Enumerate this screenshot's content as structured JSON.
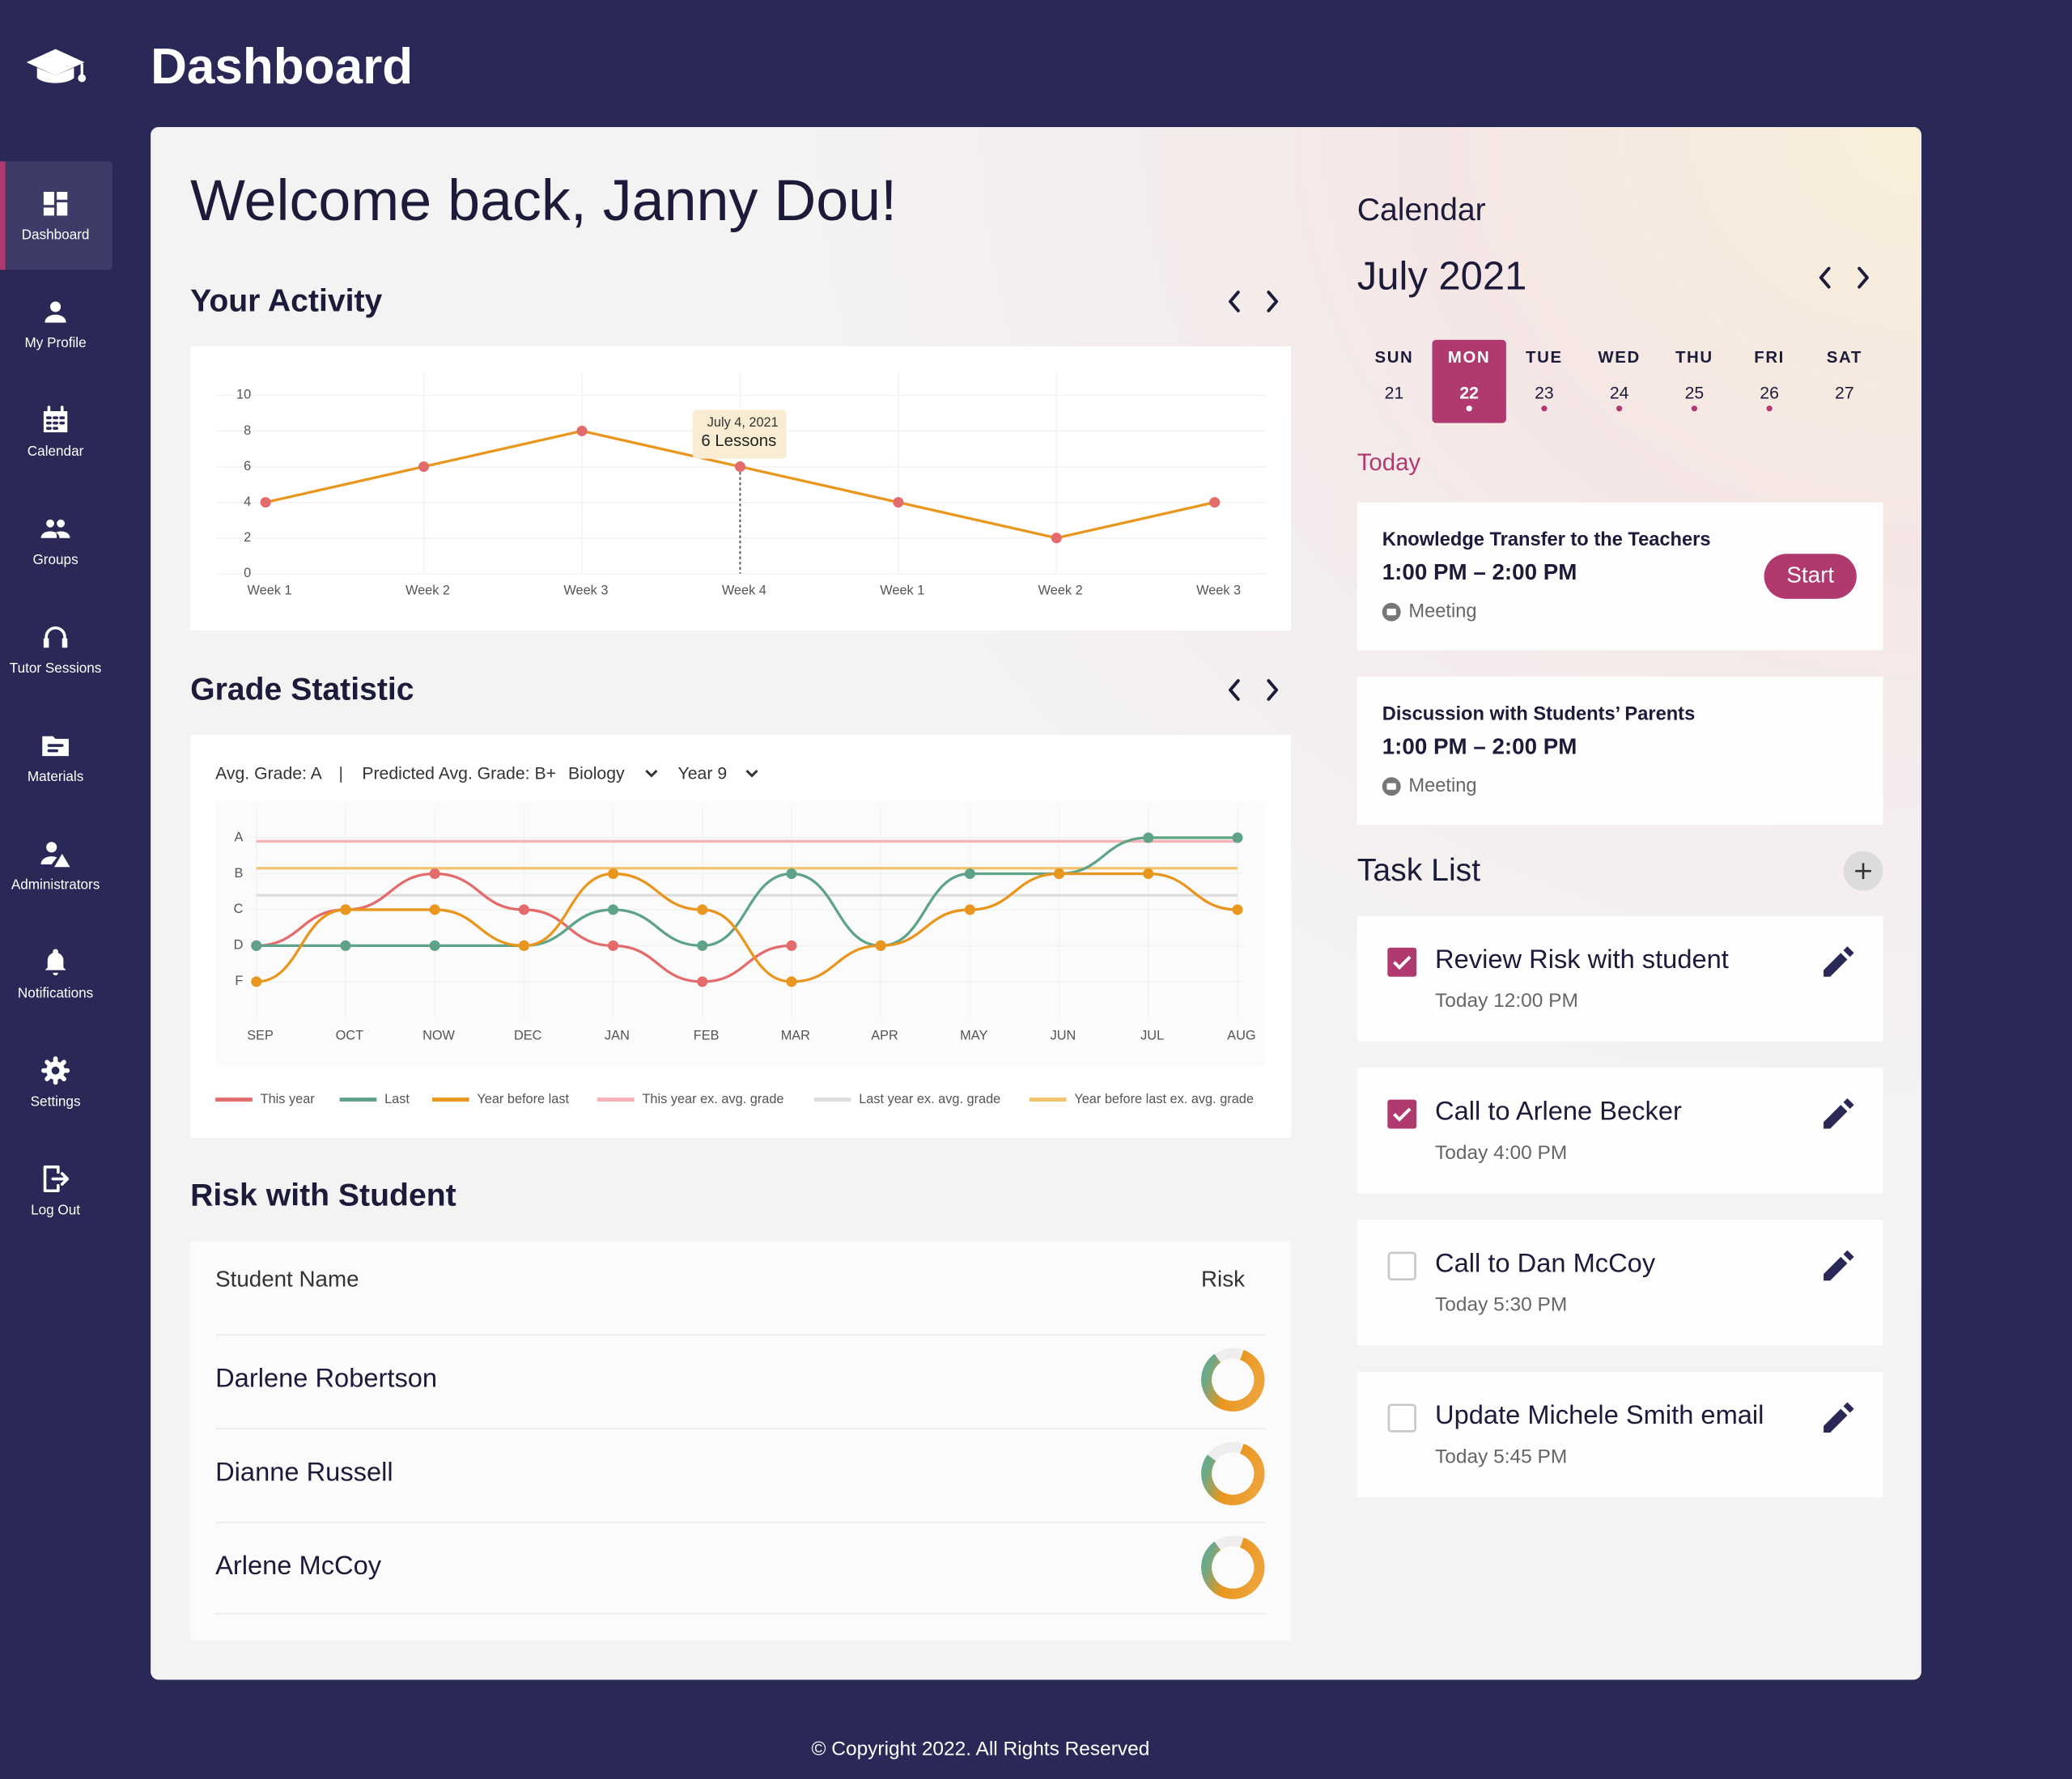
{
  "header": {
    "title": "Dashboard"
  },
  "sidebar": [
    {
      "label": "Dashboard",
      "active": true
    },
    {
      "label": "My Profile",
      "active": false
    },
    {
      "label": "Calendar",
      "active": false
    },
    {
      "label": "Groups",
      "active": false
    },
    {
      "label": "Tutor Sessions",
      "active": false
    },
    {
      "label": "Materials",
      "active": false
    },
    {
      "label": "Administrators",
      "active": false
    },
    {
      "label": "Notifications",
      "active": false
    },
    {
      "label": "Settings",
      "active": false
    },
    {
      "label": "Log Out",
      "active": false
    }
  ],
  "welcome": "Welcome back, Janny Dou!",
  "sections": {
    "activity": "Your Activity",
    "grade": "Grade Statistic",
    "risk": "Risk with Student"
  },
  "grade_filters": {
    "avg": "Avg. Grade: A",
    "predicted": "Predicted Avg. Grade: B+",
    "subject": "Biology",
    "year": "Year 9"
  },
  "chart_data": [
    {
      "type": "line",
      "categories": [
        "Week 1",
        "Week 2",
        "Week 3",
        "Week 4",
        "Week 1",
        "Week 2",
        "Week 3"
      ],
      "values": [
        4,
        6,
        8,
        6,
        4,
        2,
        4
      ],
      "color": "#e8961e",
      "point_color": "#e46b6b",
      "ylim": [
        0,
        10
      ],
      "yticks": [
        0,
        2,
        4,
        6,
        8,
        10
      ],
      "grid": true,
      "annotation": {
        "date": "July 4, 2021",
        "label": "6 Lessons"
      }
    },
    {
      "type": "line",
      "categories": [
        "SEP",
        "OCT",
        "NOW",
        "DEC",
        "JAN",
        "FEB",
        "MAR",
        "APR",
        "MAY",
        "JUN",
        "JUL",
        "AUG"
      ],
      "ylim": [
        0,
        5.8
      ],
      "yticks": [
        {
          "value": 5,
          "label": "A"
        },
        {
          "value": 4,
          "label": "B"
        },
        {
          "value": 3,
          "label": "C"
        },
        {
          "value": 2,
          "label": "D"
        },
        {
          "value": 1,
          "label": "F"
        }
      ],
      "grid": true,
      "series": [
        {
          "name": "This year",
          "color": "#e46b6b",
          "markers": true,
          "values": [
            2,
            3,
            4,
            3,
            2,
            1,
            2,
            null,
            null,
            null,
            null,
            null
          ]
        },
        {
          "name": "Last",
          "color": "#5ea287",
          "markers": true,
          "values": [
            2,
            2,
            2,
            2,
            3,
            2,
            4,
            2,
            4,
            4,
            5,
            5
          ]
        },
        {
          "name": "Year before last",
          "color": "#e8961e",
          "markers": true,
          "values": [
            1,
            3,
            3,
            2,
            4,
            3,
            1,
            2,
            3,
            4,
            4,
            3
          ]
        },
        {
          "name": "This year ex. avg. grade",
          "color": "#f5b3b8",
          "markers": false,
          "values": [
            4.9,
            4.9,
            4.9,
            4.9,
            4.9,
            4.9,
            4.9,
            4.9,
            4.9,
            4.9,
            4.9,
            4.9
          ]
        },
        {
          "name": "Last year ex. avg. grade",
          "color": "#dcdcdc",
          "markers": false,
          "values": [
            3.4,
            3.4,
            3.4,
            3.4,
            3.4,
            3.4,
            3.4,
            3.4,
            3.4,
            3.4,
            3.4,
            3.4
          ]
        },
        {
          "name": "Year before last ex. avg. grade",
          "color": "#f2c36b",
          "markers": false,
          "values": [
            4.15,
            4.15,
            4.15,
            4.15,
            4.15,
            4.15,
            4.15,
            4.15,
            4.15,
            4.15,
            4.15,
            4.15
          ]
        }
      ]
    }
  ],
  "risk": {
    "columns": [
      "Student Name",
      "Risk"
    ],
    "rows": [
      {
        "name": "Darlene Robertson",
        "risk": 85
      },
      {
        "name": "Dianne Russell",
        "risk": 80
      },
      {
        "name": "Arlene McCoy",
        "risk": 85
      }
    ]
  },
  "calendar": {
    "title": "Calendar",
    "month": "July 2021",
    "days": [
      {
        "name": "SUN",
        "date": "21",
        "selected": false,
        "event": false
      },
      {
        "name": "MON",
        "date": "22",
        "selected": true,
        "event": true
      },
      {
        "name": "TUE",
        "date": "23",
        "selected": false,
        "event": true
      },
      {
        "name": "WED",
        "date": "24",
        "selected": false,
        "event": true
      },
      {
        "name": "THU",
        "date": "25",
        "selected": false,
        "event": true
      },
      {
        "name": "FRI",
        "date": "26",
        "selected": false,
        "event": true
      },
      {
        "name": "SAT",
        "date": "27",
        "selected": false,
        "event": false
      }
    ],
    "today": "Today",
    "events": [
      {
        "title": "Knowledge Transfer to the Teachers",
        "time": "1:00 PM – 2:00 PM",
        "kind": "Meeting",
        "action": "Start"
      },
      {
        "title": "Discussion with Students’ Parents",
        "time": "1:00 PM – 2:00 PM",
        "kind": "Meeting"
      }
    ]
  },
  "tasks": {
    "title": "Task List",
    "items": [
      {
        "title": "Review Risk with student",
        "time": "Today 12:00 PM",
        "done": true
      },
      {
        "title": "Call to Arlene Becker",
        "time": "Today 4:00 PM",
        "done": true
      },
      {
        "title": "Call to Dan McCoy",
        "time": "Today 5:30 PM",
        "done": false
      },
      {
        "title": "Update Michele Smith email",
        "time": "Today 5:45 PM",
        "done": false
      }
    ]
  },
  "footer": "© Copyright 2022. All Rights Reserved"
}
